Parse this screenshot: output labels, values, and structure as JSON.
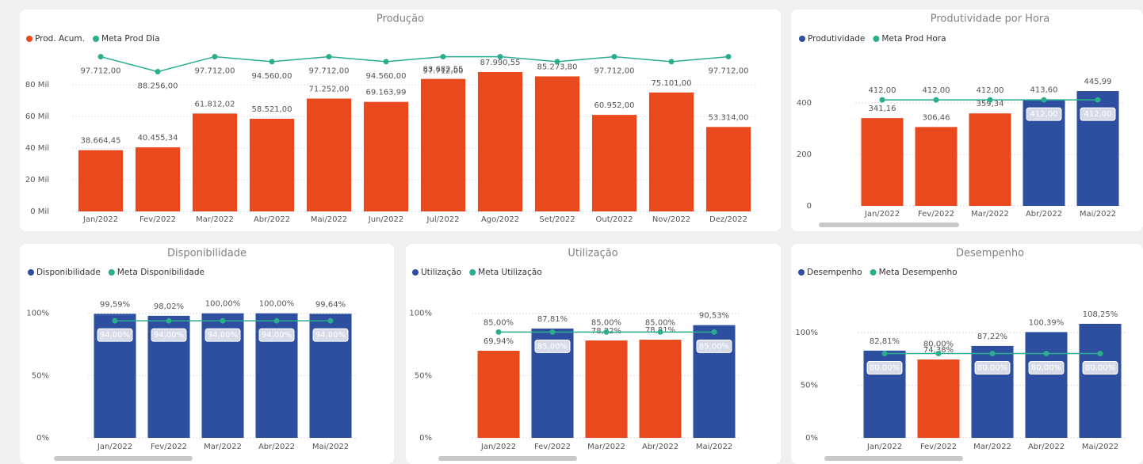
{
  "chart_data": [
    {
      "type": "bar",
      "title": "Produção",
      "categories": [
        "Jan/2022",
        "Fev/2022",
        "Mar/2022",
        "Abr/2022",
        "Mai/2022",
        "Jun/2022",
        "Jul/2022",
        "Ago/2022",
        "Set/2022",
        "Out/2022",
        "Nov/2022",
        "Dez/2022"
      ],
      "series": [
        {
          "name": "Prod. Acum.",
          "color": "#e8491d",
          "values": [
            38664.45,
            40455.34,
            61812.02,
            58521.0,
            71252.0,
            69163.99,
            83682.55,
            87990.55,
            85273.8,
            60952.0,
            75101.0,
            53314.0
          ],
          "value_labels": [
            "38.664,45",
            "40.455,34",
            "61.812,02",
            "58.521,00",
            "71.252,00",
            "69.163,99",
            "83.682,55",
            "87.990,55",
            "85.273,80",
            "60.952,00",
            "75.101,00",
            "53.314,00"
          ]
        },
        {
          "name": "Meta Prod Dia",
          "color": "#2bae8e",
          "type": "line",
          "values": [
            97712,
            88256,
            97712,
            94560,
            97712,
            94560,
            97712,
            97712,
            94560,
            97712,
            94560,
            97712
          ],
          "value_labels": [
            "97.712,00",
            "88.256,00",
            "97.712,00",
            "94.560,00",
            "97.712,00",
            "94.560,00",
            "97.712,00",
            null,
            null,
            "97.712,00",
            null,
            "97.712,00"
          ]
        }
      ],
      "ylim": [
        0,
        100000
      ],
      "yticks": [
        {
          "value": 0,
          "label": "0 Mil"
        },
        {
          "value": 20000,
          "label": "20 Mil"
        },
        {
          "value": 40000,
          "label": "40 Mil"
        },
        {
          "value": 60000,
          "label": "60 Mil"
        },
        {
          "value": 80000,
          "label": "80 Mil"
        }
      ],
      "grid": true
    },
    {
      "type": "bar",
      "title": "Produtividade por Hora",
      "categories": [
        "Jan/2022",
        "Fev/2022",
        "Mar/2022",
        "Abr/2022",
        "Mai/2022"
      ],
      "series": [
        {
          "name": "Produtividade",
          "color": "#2e4fa0",
          "colors": [
            "#e8491d",
            "#e8491d",
            "#e8491d",
            "#2e4fa0",
            "#2e4fa0"
          ],
          "values": [
            341.16,
            306.46,
            359.34,
            413.6,
            445.99
          ],
          "value_labels": [
            "341,16",
            "306,46",
            "359,34",
            "413,60",
            "445,99"
          ]
        },
        {
          "name": "Meta Prod Hora",
          "color": "#2bae8e",
          "type": "line",
          "values": [
            412,
            412,
            412,
            412,
            412
          ],
          "value_labels": [
            "412,00",
            "412,00",
            "412,00",
            "412,00",
            "412,00"
          ]
        }
      ],
      "ylim": [
        0,
        500
      ],
      "yticks": [
        0,
        200,
        400
      ],
      "grid": true
    },
    {
      "type": "bar",
      "title": "Disponibilidade",
      "categories": [
        "Jan/2022",
        "Fev/2022",
        "Mar/2022",
        "Abr/2022",
        "Mai/2022"
      ],
      "series": [
        {
          "name": "Disponibilidade",
          "color": "#2e4fa0",
          "colors": [
            "#2e4fa0",
            "#2e4fa0",
            "#2e4fa0",
            "#2e4fa0",
            "#2e4fa0"
          ],
          "values": [
            99.59,
            98.02,
            100,
            100,
            99.64
          ],
          "value_labels": [
            "99,59%",
            "98,02%",
            "100,00%",
            "100,00%",
            "99,64%"
          ]
        },
        {
          "name": "Meta Disponibilidade",
          "color": "#2bae8e",
          "type": "line",
          "values": [
            94,
            94,
            94,
            94,
            94
          ],
          "value_labels": [
            "94,00%",
            "94,00%",
            "94,00%",
            "94,00%",
            "94,00%"
          ]
        }
      ],
      "ylim": [
        0,
        110
      ],
      "yticks": [
        {
          "value": 0,
          "label": "0%"
        },
        {
          "value": 50,
          "label": "50%"
        },
        {
          "value": 100,
          "label": "100%"
        }
      ],
      "grid": true
    },
    {
      "type": "bar",
      "title": "Utilização",
      "categories": [
        "Jan/2022",
        "Fev/2022",
        "Mar/2022",
        "Abr/2022",
        "Mai/2022"
      ],
      "series": [
        {
          "name": "Utilização",
          "color": "#2e4fa0",
          "colors": [
            "#e8491d",
            "#2e4fa0",
            "#e8491d",
            "#e8491d",
            "#2e4fa0"
          ],
          "values": [
            69.94,
            87.81,
            78.22,
            78.81,
            90.53
          ],
          "value_labels": [
            "69,94%",
            "87,81%",
            "78,22%",
            "78,81%",
            "90,53%"
          ]
        },
        {
          "name": "Meta Utilização",
          "color": "#2bae8e",
          "type": "line",
          "values": [
            85,
            85,
            85,
            85,
            85
          ],
          "value_labels": [
            "85,00%",
            "85,00%",
            "85,00%",
            "85,00%",
            "85,00%"
          ]
        }
      ],
      "ylim": [
        0,
        110
      ],
      "yticks": [
        {
          "value": 0,
          "label": "0%"
        },
        {
          "value": 50,
          "label": "50%"
        },
        {
          "value": 100,
          "label": "100%"
        }
      ],
      "grid": true
    },
    {
      "type": "bar",
      "title": "Desempenho",
      "categories": [
        "Jan/2022",
        "Fev/2022",
        "Mar/2022",
        "Abr/2022",
        "Mai/2022"
      ],
      "series": [
        {
          "name": "Desempenho",
          "color": "#2e4fa0",
          "colors": [
            "#2e4fa0",
            "#e8491d",
            "#2e4fa0",
            "#2e4fa0",
            "#2e4fa0"
          ],
          "values": [
            82.81,
            74.38,
            87.22,
            100.39,
            108.25
          ],
          "value_labels": [
            "82,81%",
            "74,38%",
            "87,22%",
            "100,39%",
            "108,25%"
          ]
        },
        {
          "name": "Meta Desempenho",
          "color": "#2bae8e",
          "type": "line",
          "values": [
            80,
            80,
            80,
            80,
            80
          ],
          "value_labels": [
            "80,00%",
            "80,00%",
            "80,00%",
            "80,00%",
            "80,00%"
          ]
        }
      ],
      "ylim": [
        0,
        130
      ],
      "yticks": [
        {
          "value": 0,
          "label": "0%"
        },
        {
          "value": 50,
          "label": "50%"
        },
        {
          "value": 100,
          "label": "100%"
        }
      ],
      "grid": true
    }
  ]
}
